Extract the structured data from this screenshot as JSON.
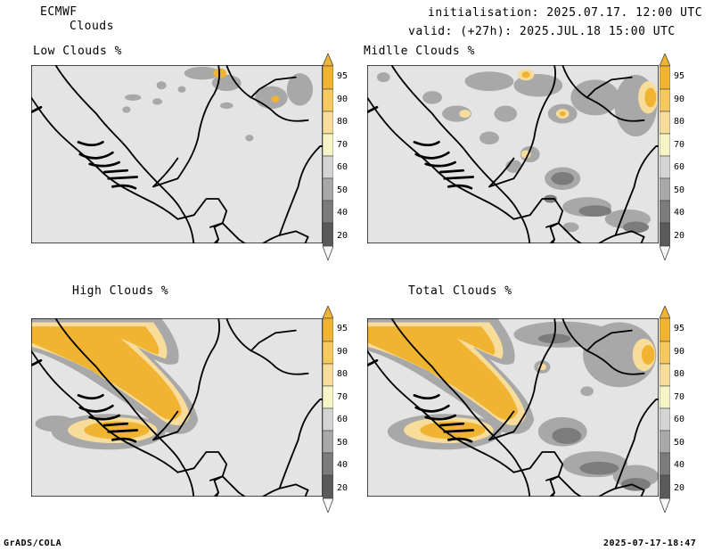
{
  "header": {
    "model": "ECMWF",
    "product": "Clouds",
    "init_line": "initialisation: 2025.07.17. 12:00 UTC",
    "valid_line": "valid: (+27h): 2025.JUL.18 15:00 UTC"
  },
  "panels": [
    {
      "title": "Low Clouds %"
    },
    {
      "title": "Midlle Clouds %"
    },
    {
      "title": "High Clouds %"
    },
    {
      "title": "Total Clouds %"
    }
  ],
  "colorbar": {
    "levels": [
      "95",
      "90",
      "80",
      "70",
      "60",
      "50",
      "40",
      "20"
    ],
    "colors": [
      "#f0b432",
      "#f5c860",
      "#f7dc9a",
      "#f5f5c8",
      "#d4d4d4",
      "#a8a8a8",
      "#7c7c7c",
      "#5a5a5a",
      "#f8f8f8"
    ]
  },
  "footer": {
    "left": "GrADS/COLA",
    "right": "2025-07-17-18:47"
  }
}
